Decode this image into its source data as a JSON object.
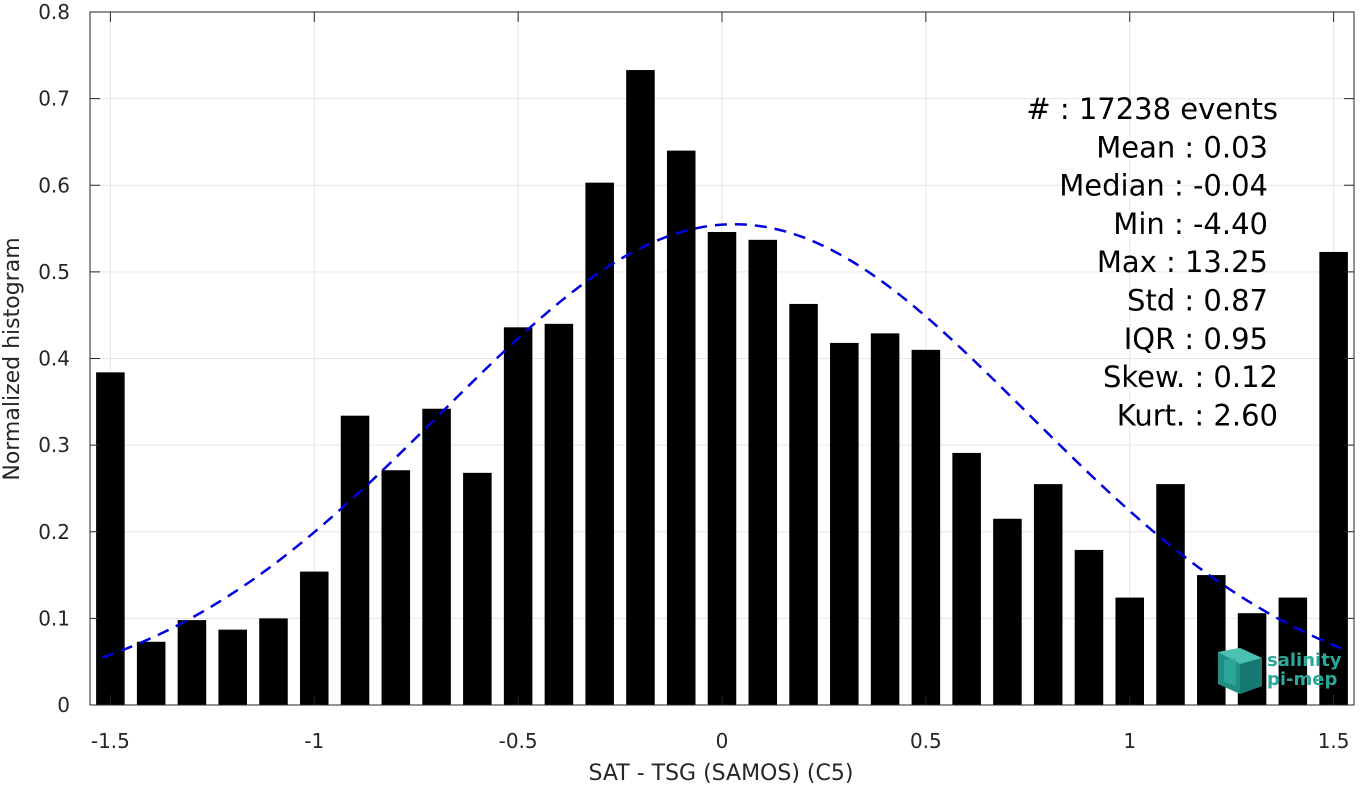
{
  "chart_data": {
    "type": "bar",
    "xlabel": "SAT - TSG (SAMOS) (C5)",
    "ylabel": "Normalized histogram",
    "xlim": [
      -1.55,
      1.55
    ],
    "ylim": [
      0,
      0.8
    ],
    "grid": true,
    "x_ticks": [
      -1.5,
      -1,
      -0.5,
      0,
      0.5,
      1,
      1.5
    ],
    "x_tick_labels": [
      "-1.5",
      "-1",
      "-0.5",
      "0",
      "0.5",
      "1",
      "1.5"
    ],
    "y_ticks": [
      0,
      0.1,
      0.2,
      0.3,
      0.4,
      0.5,
      0.6,
      0.7,
      0.8
    ],
    "y_tick_labels": [
      "0",
      "0.1",
      "0.2",
      "0.3",
      "0.4",
      "0.5",
      "0.6",
      "0.7",
      "0.8"
    ],
    "bar_width": 0.07,
    "x": [
      -1.5,
      -1.4,
      -1.3,
      -1.2,
      -1.1,
      -1.0,
      -0.9,
      -0.8,
      -0.7,
      -0.6,
      -0.5,
      -0.4,
      -0.3,
      -0.2,
      -0.1,
      0.0,
      0.1,
      0.2,
      0.3,
      0.4,
      0.5,
      0.6,
      0.7,
      0.8,
      0.9,
      1.0,
      1.1,
      1.2,
      1.3,
      1.4,
      1.5
    ],
    "values": [
      0.384,
      0.073,
      0.098,
      0.087,
      0.1,
      0.154,
      0.334,
      0.271,
      0.342,
      0.268,
      0.436,
      0.44,
      0.603,
      0.733,
      0.64,
      0.546,
      0.537,
      0.463,
      0.418,
      0.429,
      0.41,
      0.291,
      0.215,
      0.255,
      0.179,
      0.124,
      0.255,
      0.15,
      0.106,
      0.124,
      0.523
    ],
    "bar_color": "#000000",
    "fit_curve": {
      "style": "dashed",
      "color": "#0000dd",
      "mean": 0.03,
      "std": 0.72,
      "peak": 0.555,
      "x_range": [
        -1.52,
        1.52
      ]
    },
    "stats_lines": [
      "#  : 17238 events",
      "Mean : 0.03",
      "Median : -0.04",
      "Min : -4.40",
      "Max : 13.25",
      "Std : 0.87",
      "IQR : 0.95",
      "Skew. : 0.12",
      "Kurt. : 2.60"
    ],
    "logo": {
      "line1": "salinity",
      "line2": "pi-mep",
      "color": "#2aa89a"
    }
  }
}
